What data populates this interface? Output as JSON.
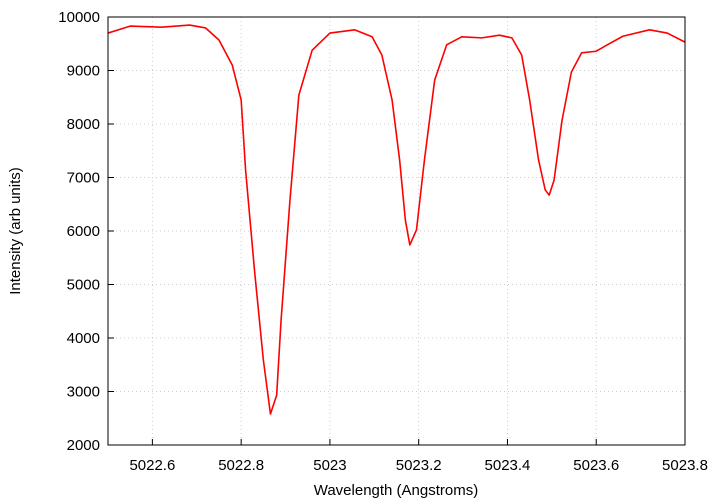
{
  "chart_data": {
    "type": "line",
    "xlabel": "Wavelength (Angstroms)",
    "ylabel": "Intensity (arb units)",
    "xlim": [
      5022.5,
      5023.8
    ],
    "ylim": [
      2000,
      10000
    ],
    "xticks": [
      5022.6,
      5022.8,
      5023,
      5023.2,
      5023.4,
      5023.6,
      5023.8
    ],
    "yticks": [
      2000,
      3000,
      4000,
      5000,
      6000,
      7000,
      8000,
      9000,
      10000
    ],
    "grid": true,
    "series": [
      {
        "color": "#ff0000",
        "x": [
          5022.5,
          5022.55,
          5022.62,
          5022.684,
          5022.72,
          5022.75,
          5022.78,
          5022.8,
          5022.81,
          5022.83,
          5022.85,
          5022.866,
          5022.88,
          5022.89,
          5022.91,
          5022.93,
          5022.96,
          5023.0,
          5023.056,
          5023.095,
          5023.117,
          5023.14,
          5023.157,
          5023.17,
          5023.18,
          5023.195,
          5023.213,
          5023.236,
          5023.263,
          5023.297,
          5023.342,
          5023.382,
          5023.41,
          5023.432,
          5023.45,
          5023.47,
          5023.485,
          5023.494,
          5023.505,
          5023.523,
          5023.544,
          5023.567,
          5023.6,
          5023.625,
          5023.66,
          5023.72,
          5023.76,
          5023.8
        ],
        "values": [
          9700,
          9830,
          9810,
          9850,
          9795,
          9570,
          9100,
          8450,
          7140,
          5270,
          3590,
          2580,
          2930,
          4340,
          6580,
          8540,
          9380,
          9700,
          9760,
          9630,
          9290,
          8450,
          7330,
          6200,
          5740,
          6020,
          7330,
          8820,
          9480,
          9630,
          9610,
          9660,
          9610,
          9290,
          8450,
          7330,
          6770,
          6670,
          6950,
          8070,
          8970,
          9330,
          9360,
          9480,
          9640,
          9760,
          9700,
          9530
        ]
      }
    ]
  }
}
